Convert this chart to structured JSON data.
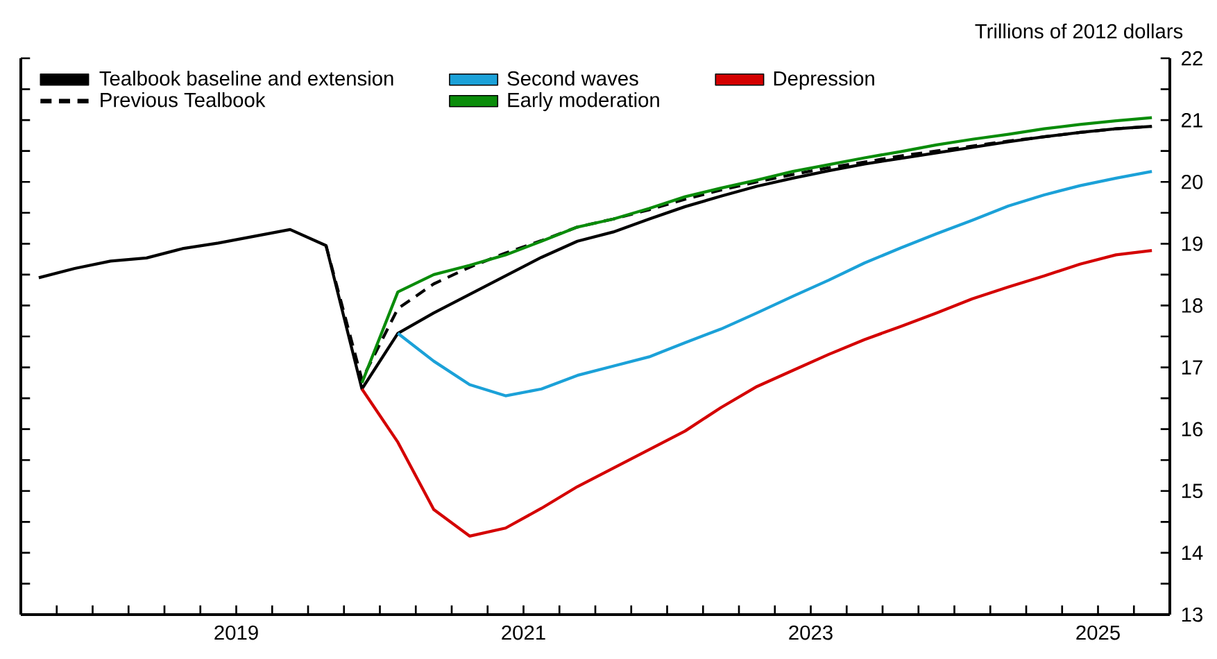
{
  "chart_data": {
    "type": "line",
    "ylabel": "Trillions of 2012 dollars",
    "legend": "top left",
    "xlim": [
      2018,
      2026
    ],
    "ylim": [
      13,
      22
    ],
    "xticks": [
      {
        "value": 2018.25,
        "label": null
      },
      {
        "value": 2018.5,
        "label": null
      },
      {
        "value": 2018.75,
        "label": null
      },
      {
        "value": 2019,
        "label": null
      },
      {
        "value": 2019.25,
        "label": null
      },
      {
        "value": 2019.5,
        "label": "2019"
      },
      {
        "value": 2019.75,
        "label": null
      },
      {
        "value": 2020,
        "label": null
      },
      {
        "value": 2020.25,
        "label": null
      },
      {
        "value": 2020.5,
        "label": null
      },
      {
        "value": 2020.75,
        "label": null
      },
      {
        "value": 2021,
        "label": null
      },
      {
        "value": 2021.25,
        "label": null
      },
      {
        "value": 2021.5,
        "label": "2021"
      },
      {
        "value": 2021.75,
        "label": null
      },
      {
        "value": 2022,
        "label": null
      },
      {
        "value": 2022.25,
        "label": null
      },
      {
        "value": 2022.5,
        "label": null
      },
      {
        "value": 2022.75,
        "label": null
      },
      {
        "value": 2023,
        "label": null
      },
      {
        "value": 2023.25,
        "label": null
      },
      {
        "value": 2023.5,
        "label": "2023"
      },
      {
        "value": 2023.75,
        "label": null
      },
      {
        "value": 2024,
        "label": null
      },
      {
        "value": 2024.25,
        "label": null
      },
      {
        "value": 2024.5,
        "label": null
      },
      {
        "value": 2024.75,
        "label": null
      },
      {
        "value": 2025,
        "label": null
      },
      {
        "value": 2025.25,
        "label": null
      },
      {
        "value": 2025.5,
        "label": "2025"
      },
      {
        "value": 2025.75,
        "label": null
      }
    ],
    "yticks": [
      13,
      {
        "value": 13.5,
        "label": null
      },
      14,
      {
        "value": 14.5,
        "label": null
      },
      15,
      {
        "value": 15.5,
        "label": null
      },
      16,
      {
        "value": 16.5,
        "label": null
      },
      17,
      {
        "value": 17.5,
        "label": null
      },
      18,
      {
        "value": 18.5,
        "label": null
      },
      19,
      {
        "value": 19.5,
        "label": null
      },
      20,
      {
        "value": 20.5,
        "label": null
      },
      21,
      {
        "value": 21.5,
        "label": null
      },
      22
    ],
    "series": [
      {
        "name": "Tealbook baseline and extension",
        "color": "#000000",
        "line_style": "solid",
        "x": [
          2018.125,
          2018.375,
          2018.625,
          2018.875,
          2019.125,
          2019.375,
          2019.625,
          2019.875,
          2020.125,
          2020.375,
          2020.625,
          2020.875,
          2021.125,
          2021.375,
          2021.625,
          2021.875,
          2022.125,
          2022.375,
          2022.625,
          2022.875,
          2023.125,
          2023.375,
          2023.625,
          2023.875,
          2024.125,
          2024.375,
          2024.625,
          2024.875,
          2025.125,
          2025.375,
          2025.625,
          2025.875
        ],
        "values": [
          18.45,
          18.6,
          18.72,
          18.77,
          18.92,
          19.01,
          19.12,
          19.23,
          18.97,
          16.65,
          17.55,
          17.88,
          18.18,
          18.48,
          18.78,
          19.04,
          19.19,
          19.4,
          19.6,
          19.77,
          19.93,
          20.06,
          20.18,
          20.29,
          20.38,
          20.47,
          20.56,
          20.65,
          20.73,
          20.8,
          20.86,
          20.9
        ]
      },
      {
        "name": "Second waves",
        "color": "#1ba1d8",
        "line_style": "solid",
        "x": [
          2020.625,
          2020.875,
          2021.125,
          2021.375,
          2021.625,
          2021.875,
          2022.125,
          2022.375,
          2022.625,
          2022.875,
          2023.125,
          2023.375,
          2023.625,
          2023.875,
          2024.125,
          2024.375,
          2024.625,
          2024.875,
          2025.125,
          2025.375,
          2025.625,
          2025.875
        ],
        "values": [
          17.55,
          17.1,
          16.72,
          16.54,
          16.65,
          16.87,
          17.02,
          17.17,
          17.4,
          17.62,
          17.88,
          18.15,
          18.41,
          18.69,
          18.93,
          19.16,
          19.38,
          19.61,
          19.79,
          19.94,
          20.06,
          20.17
        ]
      },
      {
        "name": "Depression",
        "color": "#d40000",
        "line_style": "solid",
        "x": [
          2020.375,
          2020.625,
          2020.875,
          2021.125,
          2021.375,
          2021.625,
          2021.875,
          2022.125,
          2022.375,
          2022.625,
          2022.875,
          2023.125,
          2023.375,
          2023.625,
          2023.875,
          2024.125,
          2024.375,
          2024.625,
          2024.875,
          2025.125,
          2025.375,
          2025.625,
          2025.875
        ],
        "values": [
          16.65,
          15.79,
          14.7,
          14.27,
          14.4,
          14.72,
          15.07,
          15.37,
          15.67,
          15.97,
          16.35,
          16.69,
          16.95,
          17.21,
          17.45,
          17.66,
          17.88,
          18.11,
          18.3,
          18.48,
          18.67,
          18.82,
          18.89
        ]
      },
      {
        "name": "Previous Tealbook",
        "color": "#000000",
        "line_style": "dashed",
        "x": [
          2020.125,
          2020.375,
          2020.625,
          2020.875,
          2021.125,
          2021.375,
          2021.625,
          2021.875,
          2022.125,
          2022.375,
          2022.625,
          2022.875,
          2023.125,
          2023.375,
          2023.625,
          2023.875,
          2024.125,
          2024.375,
          2024.625,
          2024.875,
          2025.125,
          2025.375,
          2025.625,
          2025.875
        ],
        "values": [
          18.97,
          16.8,
          17.95,
          18.35,
          18.62,
          18.85,
          19.05,
          19.27,
          19.4,
          19.55,
          19.72,
          19.87,
          20.0,
          20.12,
          20.23,
          20.32,
          20.42,
          20.5,
          20.58,
          20.66,
          20.73,
          20.8,
          20.86,
          20.9
        ]
      },
      {
        "name": "Early moderation",
        "color": "#0a8c0a",
        "line_style": "solid",
        "x": [
          2020.375,
          2020.625,
          2020.875,
          2021.125,
          2021.375,
          2021.625,
          2021.875,
          2022.125,
          2022.375,
          2022.625,
          2022.875,
          2023.125,
          2023.375,
          2023.625,
          2023.875,
          2024.125,
          2024.375,
          2024.625,
          2024.875,
          2025.125,
          2025.375,
          2025.625,
          2025.875
        ],
        "values": [
          16.75,
          18.22,
          18.5,
          18.65,
          18.82,
          19.04,
          19.27,
          19.4,
          19.57,
          19.76,
          19.9,
          20.03,
          20.17,
          20.28,
          20.39,
          20.49,
          20.6,
          20.69,
          20.77,
          20.86,
          20.93,
          20.99,
          21.04
        ]
      }
    ]
  }
}
